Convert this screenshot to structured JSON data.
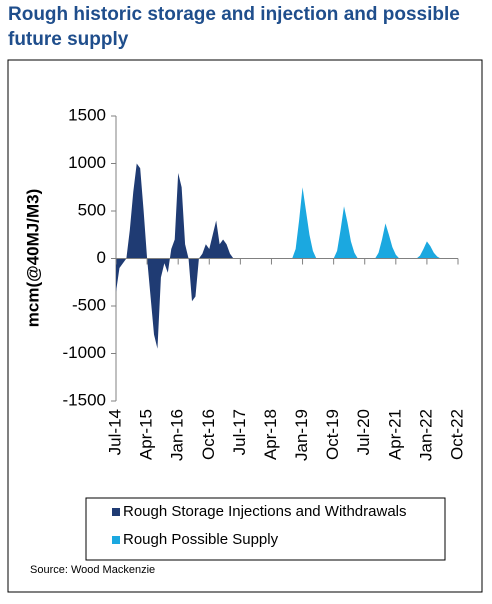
{
  "chart_data": {
    "type": "area",
    "title": "Rough historic storage and injection and possible future supply",
    "y_label": "mcm(@40MJ/M3)",
    "source": "Source: Wood Mackenzie",
    "x": [
      "2014-07",
      "2014-08",
      "2014-09",
      "2014-10",
      "2014-11",
      "2014-12",
      "2015-01",
      "2015-02",
      "2015-03",
      "2015-04",
      "2015-05",
      "2015-06",
      "2015-07",
      "2015-08",
      "2015-09",
      "2015-10",
      "2015-11",
      "2015-12",
      "2016-01",
      "2016-02",
      "2016-03",
      "2016-04",
      "2016-05",
      "2016-06",
      "2016-07",
      "2016-08",
      "2016-09",
      "2016-10",
      "2016-11",
      "2016-12",
      "2017-01",
      "2017-02",
      "2017-03",
      "2017-04",
      "2017-05",
      "2018-10",
      "2018-11",
      "2018-12",
      "2019-01",
      "2019-02",
      "2019-03",
      "2019-04",
      "2019-05",
      "2019-10",
      "2019-11",
      "2019-12",
      "2020-01",
      "2020-02",
      "2020-03",
      "2020-04",
      "2020-05",
      "2020-10",
      "2020-11",
      "2020-12",
      "2021-01",
      "2021-02",
      "2021-03",
      "2021-04",
      "2021-05",
      "2021-10",
      "2021-11",
      "2021-12",
      "2022-01",
      "2022-02",
      "2022-03",
      "2022-04",
      "2022-05"
    ],
    "series": [
      {
        "name": "Rough Storage Injections and Withdrawals",
        "color": "#1f3b73",
        "values": [
          -350,
          -100,
          -50,
          0,
          300,
          700,
          1000,
          950,
          500,
          0,
          -400,
          -800,
          -950,
          -200,
          -50,
          -150,
          100,
          200,
          900,
          750,
          150,
          0,
          -450,
          -400,
          0,
          50,
          150,
          100,
          250,
          400,
          150,
          200,
          150,
          50,
          0,
          null,
          null,
          null,
          null,
          null,
          null,
          null,
          null,
          null,
          null,
          null,
          null,
          null,
          null,
          null,
          null,
          null,
          null,
          null,
          null,
          null,
          null,
          null,
          null,
          null,
          null,
          null,
          null,
          null,
          null,
          null,
          null
        ]
      },
      {
        "name": "Rough Possible Supply",
        "color": "#1ba8e0",
        "values": [
          null,
          null,
          null,
          null,
          null,
          null,
          null,
          null,
          null,
          null,
          null,
          null,
          null,
          null,
          null,
          null,
          null,
          null,
          null,
          null,
          null,
          null,
          null,
          null,
          null,
          null,
          null,
          null,
          null,
          null,
          null,
          null,
          null,
          null,
          null,
          0,
          100,
          400,
          750,
          500,
          250,
          80,
          0,
          0,
          80,
          300,
          550,
          380,
          180,
          60,
          0,
          0,
          60,
          200,
          370,
          250,
          120,
          40,
          0,
          0,
          30,
          100,
          180,
          130,
          60,
          20,
          0
        ]
      }
    ],
    "xlim": [
      "2014-07",
      "2022-10"
    ],
    "xticks": [
      {
        "value": "2014-07",
        "label": "Jul-14"
      },
      {
        "value": "2015-04",
        "label": "Apr-15"
      },
      {
        "value": "2016-01",
        "label": "Jan-16"
      },
      {
        "value": "2016-10",
        "label": "Oct-16"
      },
      {
        "value": "2017-07",
        "label": "Jul-17"
      },
      {
        "value": "2018-04",
        "label": "Apr-18"
      },
      {
        "value": "2019-01",
        "label": "Jan-19"
      },
      {
        "value": "2019-10",
        "label": "Oct-19"
      },
      {
        "value": "2020-07",
        "label": "Jul-20"
      },
      {
        "value": "2021-04",
        "label": "Apr-21"
      },
      {
        "value": "2022-01",
        "label": "Jan-22"
      },
      {
        "value": "2022-10",
        "label": "Oct-22"
      }
    ],
    "ylim": [
      -1500,
      1500
    ],
    "yticks": [
      1500,
      1000,
      500,
      0,
      -500,
      -1000,
      -1500
    ]
  }
}
